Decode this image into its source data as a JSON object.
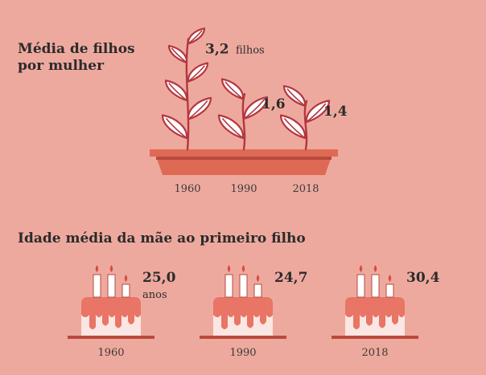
{
  "chart_data": [
    {
      "type": "bar",
      "title": "Média de filhos por mulher",
      "categories": [
        "1960",
        "1990",
        "2018"
      ],
      "values": [
        3.2,
        1.6,
        1.4
      ],
      "value_labels": [
        "3,2",
        "1,6",
        "1,4"
      ],
      "unit": "filhos"
    },
    {
      "type": "bar",
      "title": "Idade média da mãe ao primeiro filho",
      "categories": [
        "1960",
        "1990",
        "2018"
      ],
      "values": [
        25.0,
        24.7,
        30.4
      ],
      "value_labels": [
        "25,0",
        "24,7",
        "30,4"
      ],
      "unit": "anos"
    }
  ],
  "colors": {
    "background": "#eea99e",
    "leaf_stroke": "#b5363f",
    "pot": "#de6a55",
    "pot_shadow": "#b84a3c",
    "cake_top": "#e87565",
    "cake_body": "#fae6e2",
    "cake_plate": "#b84a3c",
    "candle": "#ffffff",
    "flame": "#d64c43"
  }
}
